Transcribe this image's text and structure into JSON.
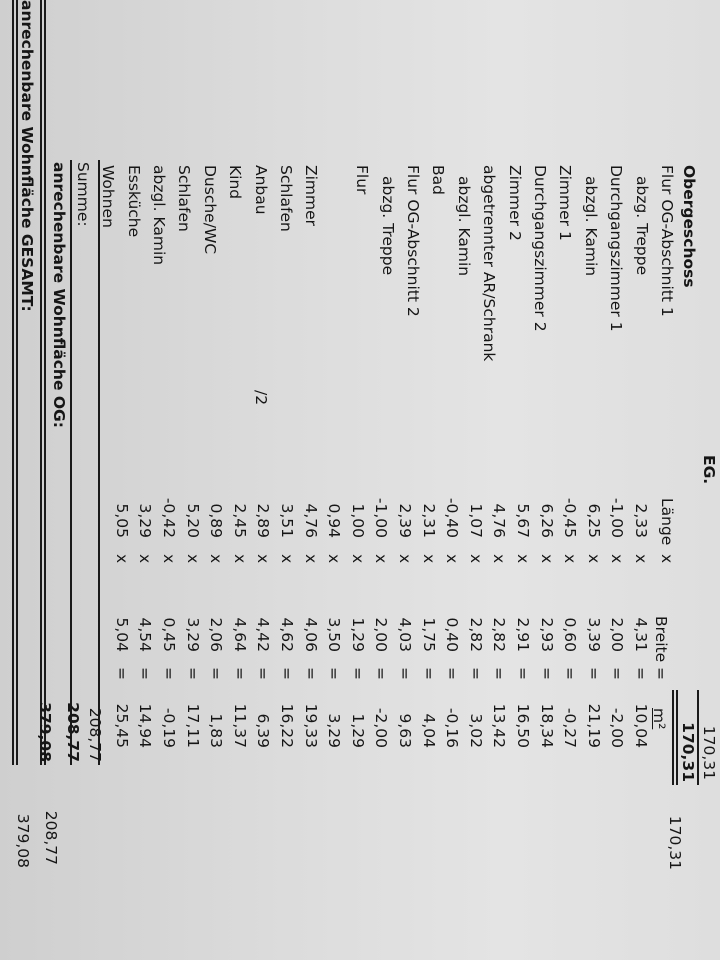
{
  "header": {
    "section_fragment": "EG.",
    "prev_total_cut": "170,31",
    "prev_total": "170,31",
    "prev_total_right": "170,31",
    "section_title": "Obergeschoss",
    "col_length": "Länge",
    "col_times": "x",
    "col_width": "Breite",
    "col_equals": "=",
    "col_area": "m²"
  },
  "rows": [
    {
      "label": "Flur OG-Abschnitt 1",
      "indent": false,
      "length": "2,33",
      "width": "4,31",
      "area": "10,04"
    },
    {
      "label": "abzg. Treppe",
      "indent": true,
      "length": "-1,00",
      "width": "2,00",
      "area": "-2,00"
    },
    {
      "label": "Durchgangszimmer 1",
      "indent": false,
      "length": "6,25",
      "width": "3,39",
      "area": "21,19"
    },
    {
      "label": "abzgl. Kamin",
      "indent": true,
      "length": "-0,45",
      "width": "0,60",
      "area": "-0,27"
    },
    {
      "label": "Zimmer 1",
      "indent": false,
      "length": "6,26",
      "width": "2,93",
      "area": "18,34"
    },
    {
      "label": "Durchgangszimmer 2",
      "indent": false,
      "length": "5,67",
      "width": "2,91",
      "area": "16,50"
    },
    {
      "label": "Zimmer 2",
      "indent": false,
      "length": "4,76",
      "width": "2,82",
      "area": "13,42"
    },
    {
      "label": "abgetrennter AR/Schrank",
      "indent": false,
      "length": "1,07",
      "width": "2,82",
      "area": "3,02"
    },
    {
      "label": "abzgl. Kamin",
      "indent": true,
      "length": "-0,40",
      "width": "0,40",
      "area": "-0,16"
    },
    {
      "label": "Bad",
      "indent": false,
      "length": "2,31",
      "width": "1,75",
      "area": "4,04"
    },
    {
      "label": "Flur OG-Abschnitt 2",
      "indent": false,
      "length": "2,39",
      "width": "4,03",
      "area": "9,63"
    },
    {
      "label": "abzg. Treppe",
      "indent": true,
      "length": "-1,00",
      "width": "2,00",
      "area": "-2,00"
    },
    {
      "label": "Flur",
      "indent": false,
      "length": "1,00",
      "width": "1,29",
      "area": "1,29"
    },
    {
      "label": "",
      "indent": false,
      "length": "0,94",
      "width": "3,50",
      "area": "3,29"
    },
    {
      "label": "Zimmer",
      "indent": false,
      "length": "4,76",
      "width": "4,06",
      "area": "19,33"
    },
    {
      "label": "Schlafen",
      "indent": false,
      "length": "3,51",
      "width": "4,62",
      "area": "16,22"
    },
    {
      "label": "Anbau",
      "indent": false,
      "note": "/2",
      "length": "2,89",
      "width": "4,42",
      "area": "6,39"
    },
    {
      "label": "Kind",
      "indent": false,
      "length": "2,45",
      "width": "4,64",
      "area": "11,37"
    },
    {
      "label": "Dusche/WC",
      "indent": false,
      "length": "0,89",
      "width": "2,06",
      "area": "1,83"
    },
    {
      "label": "Schlafen",
      "indent": false,
      "length": "5,20",
      "width": "3,29",
      "area": "17,11"
    },
    {
      "label": "abzgl. Kamin",
      "indent": false,
      "length": "-0,42",
      "width": "0,45",
      "area": "-0,19"
    },
    {
      "label": "Essküche",
      "indent": false,
      "length": "3,29",
      "width": "4,54",
      "area": "14,94"
    },
    {
      "label": "Wohnen",
      "indent": false,
      "length": "5,05",
      "width": "5,04",
      "area": "25,45"
    }
  ],
  "totals": {
    "sum_label": "Summe:",
    "sum_value": "208,77",
    "og_label": "anrechenbare Wohnfläche OG:",
    "og_value": "208,77",
    "og_value_right": "208,77",
    "total_label": "anrechenbare Wohnfläche GESAMT:",
    "total_value": "379,08",
    "total_value_right": "379,08"
  }
}
